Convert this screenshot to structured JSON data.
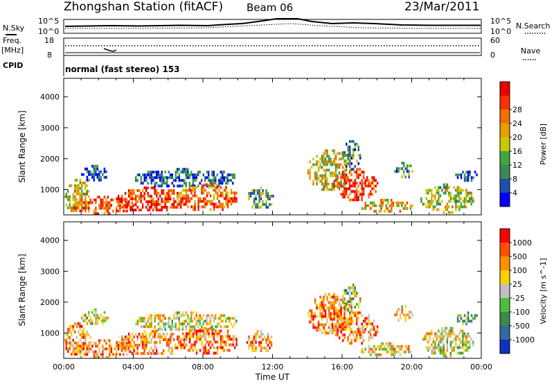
{
  "header": {
    "title": "Zhongshan Station (fitACF)",
    "beam": "Beam 06",
    "date": "23/Mar/2011"
  },
  "strip": {
    "left_nsky_label": "N.Sky",
    "left_nsky_ticks": [
      "10^5",
      "10^0"
    ],
    "right_nsearch_label": "N.Search",
    "right_nsearch_ticks": [
      "10^5",
      "10^0"
    ],
    "freq_label": "Freq.",
    "freq_unit": "[MHz]",
    "freq_ticks": [
      "18",
      "8"
    ],
    "nave_label": "Nave",
    "nave_ticks": [
      "60",
      "0"
    ],
    "cpid_label": "CPID",
    "cpid_text": "normal (fast stereo) 153"
  },
  "chart_data": [
    {
      "type": "heatmap",
      "panel": "power",
      "xlabel": "",
      "ylabel": "Slant Range [km]",
      "x_range_hours": [
        0,
        24
      ],
      "ylim": [
        180,
        4600
      ],
      "y_ticks": [
        "1000",
        "2000",
        "3000",
        "4000"
      ],
      "colorbar_label": "Power [dB]",
      "colorbar_ticks": [
        "4",
        "8",
        "12",
        "16",
        "20",
        "24",
        "28"
      ],
      "colors": [
        "#0000ff",
        "#1f4fb0",
        "#3a8a56",
        "#3fa53f",
        "#c8c800",
        "#e8a000",
        "#f07000",
        "#ff3000",
        "#ee0000"
      ],
      "echo_regions": [
        {
          "t0": 0.0,
          "t1": 1.5,
          "r0": 300,
          "r1": 1350,
          "level": 0.55
        },
        {
          "t0": 0.5,
          "t1": 4.0,
          "r0": 250,
          "r1": 800,
          "level": 0.8
        },
        {
          "t0": 1.0,
          "t1": 2.5,
          "r0": 1300,
          "r1": 1800,
          "level": 0.15
        },
        {
          "t0": 3.0,
          "t1": 7.0,
          "r0": 300,
          "r1": 1100,
          "level": 0.85
        },
        {
          "t0": 4.0,
          "t1": 10.0,
          "r0": 1100,
          "r1": 1700,
          "level": 0.2
        },
        {
          "t0": 6.5,
          "t1": 10.0,
          "r0": 350,
          "r1": 1200,
          "level": 0.75
        },
        {
          "t0": 10.5,
          "t1": 12.0,
          "r0": 400,
          "r1": 1100,
          "level": 0.35
        },
        {
          "t0": 14.0,
          "t1": 16.5,
          "r0": 1000,
          "r1": 2300,
          "level": 0.5
        },
        {
          "t0": 15.5,
          "t1": 18.0,
          "r0": 700,
          "r1": 1700,
          "level": 0.85
        },
        {
          "t0": 16.0,
          "t1": 17.0,
          "r0": 1700,
          "r1": 2600,
          "level": 0.25
        },
        {
          "t0": 17.0,
          "t1": 20.0,
          "r0": 300,
          "r1": 700,
          "level": 0.55
        },
        {
          "t0": 19.0,
          "t1": 20.0,
          "r0": 1400,
          "r1": 1900,
          "level": 0.3
        },
        {
          "t0": 20.5,
          "t1": 23.5,
          "r0": 300,
          "r1": 1200,
          "level": 0.45
        },
        {
          "t0": 22.5,
          "t1": 23.8,
          "r0": 1300,
          "r1": 1700,
          "level": 0.15
        }
      ]
    },
    {
      "type": "heatmap",
      "panel": "velocity",
      "xlabel": "Time UT",
      "ylabel": "Slant Range [km]",
      "x_range_hours": [
        0,
        24
      ],
      "x_ticks": [
        "00:00",
        "04:00",
        "08:00",
        "12:00",
        "16:00",
        "20:00",
        "00:00"
      ],
      "ylim": [
        180,
        4600
      ],
      "y_ticks": [
        "1000",
        "2000",
        "3000",
        "4000"
      ],
      "colorbar_label": "Velocity [m s^-1]",
      "colorbar_ticks": [
        "1000",
        "500",
        "100",
        "25",
        "-25",
        "-100",
        "-500",
        "-1000"
      ],
      "colors": [
        "#1030c0",
        "#2f6aa0",
        "#3c8a4c",
        "#4bbf3a",
        "#c0c0c0",
        "#ffd000",
        "#ff9000",
        "#ff5000",
        "#ff0000"
      ],
      "echo_regions": [
        {
          "t0": 0.0,
          "t1": 1.5,
          "r0": 300,
          "r1": 1350,
          "level": 0.7
        },
        {
          "t0": 0.5,
          "t1": 4.0,
          "r0": 250,
          "r1": 800,
          "level": 0.7
        },
        {
          "t0": 1.0,
          "t1": 2.5,
          "r0": 1300,
          "r1": 1800,
          "level": 0.5
        },
        {
          "t0": 3.0,
          "t1": 7.0,
          "r0": 300,
          "r1": 1100,
          "level": 0.72
        },
        {
          "t0": 4.0,
          "t1": 10.0,
          "r0": 1100,
          "r1": 1700,
          "level": 0.55
        },
        {
          "t0": 6.5,
          "t1": 10.0,
          "r0": 350,
          "r1": 1200,
          "level": 0.78
        },
        {
          "t0": 10.5,
          "t1": 12.0,
          "r0": 400,
          "r1": 1100,
          "level": 0.7
        },
        {
          "t0": 14.0,
          "t1": 16.5,
          "r0": 1000,
          "r1": 2300,
          "level": 0.75
        },
        {
          "t0": 15.5,
          "t1": 18.0,
          "r0": 700,
          "r1": 1700,
          "level": 0.72
        },
        {
          "t0": 16.0,
          "t1": 17.0,
          "r0": 1700,
          "r1": 2600,
          "level": 0.45
        },
        {
          "t0": 17.0,
          "t1": 20.0,
          "r0": 300,
          "r1": 700,
          "level": 0.6
        },
        {
          "t0": 19.0,
          "t1": 20.0,
          "r0": 1400,
          "r1": 1900,
          "level": 0.65
        },
        {
          "t0": 20.5,
          "t1": 23.5,
          "r0": 300,
          "r1": 1200,
          "level": 0.55
        },
        {
          "t0": 22.5,
          "t1": 23.8,
          "r0": 1300,
          "r1": 1700,
          "level": 0.4
        }
      ]
    }
  ]
}
